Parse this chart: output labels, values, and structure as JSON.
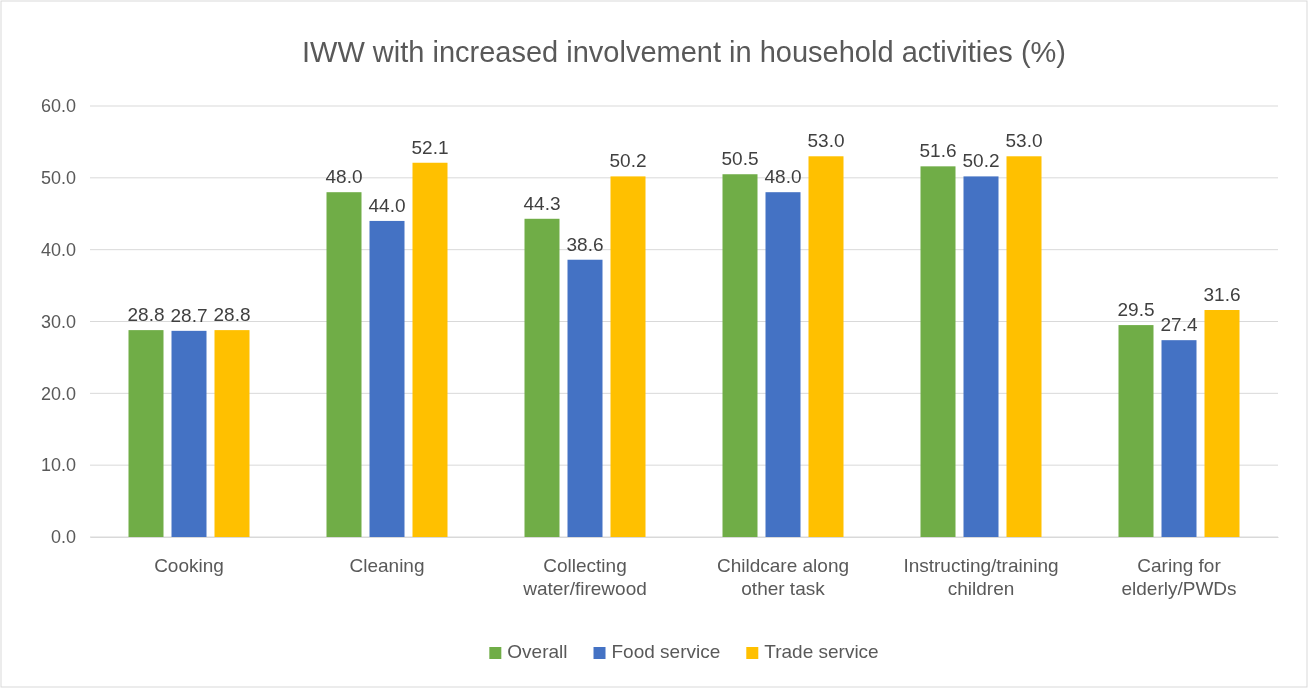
{
  "chart_data": {
    "type": "bar",
    "title": "IWW with increased involvement in household activities (%)",
    "categories": [
      "Cooking",
      "Cleaning",
      "Collecting water/firewood",
      "Childcare along other task",
      "Instructing/training children",
      "Caring for elderly/PWDs"
    ],
    "series": [
      {
        "name": "Overall",
        "color": "#70ad47",
        "values": [
          28.8,
          48.0,
          44.3,
          50.5,
          51.6,
          29.5
        ],
        "value_labels": [
          "28.8",
          "48.0",
          "44.3",
          "50.5",
          "51.6",
          "29.5"
        ]
      },
      {
        "name": "Food service",
        "color": "#4472c4",
        "values": [
          28.7,
          44.0,
          38.6,
          48.0,
          50.2,
          27.4
        ],
        "value_labels": [
          "28.7",
          "44.0",
          "38.6",
          "48.0",
          "50.2",
          "27.4"
        ]
      },
      {
        "name": "Trade service",
        "color": "#ffc000",
        "values": [
          28.8,
          52.1,
          50.2,
          53.0,
          53.0,
          31.6
        ],
        "value_labels": [
          "28.8",
          "52.1",
          "50.2",
          "53.0",
          "53.0",
          "31.6"
        ]
      }
    ],
    "ylim": [
      0,
      60
    ],
    "yticks": [
      {
        "value": 0,
        "label": "0.0"
      },
      {
        "value": 10,
        "label": "10.0"
      },
      {
        "value": 20,
        "label": "20.0"
      },
      {
        "value": 30,
        "label": "30.0"
      },
      {
        "value": 40,
        "label": "40.0"
      },
      {
        "value": 50,
        "label": "50.0"
      },
      {
        "value": 60,
        "label": "60.0"
      }
    ],
    "grid": "y",
    "legend": "bottom"
  }
}
